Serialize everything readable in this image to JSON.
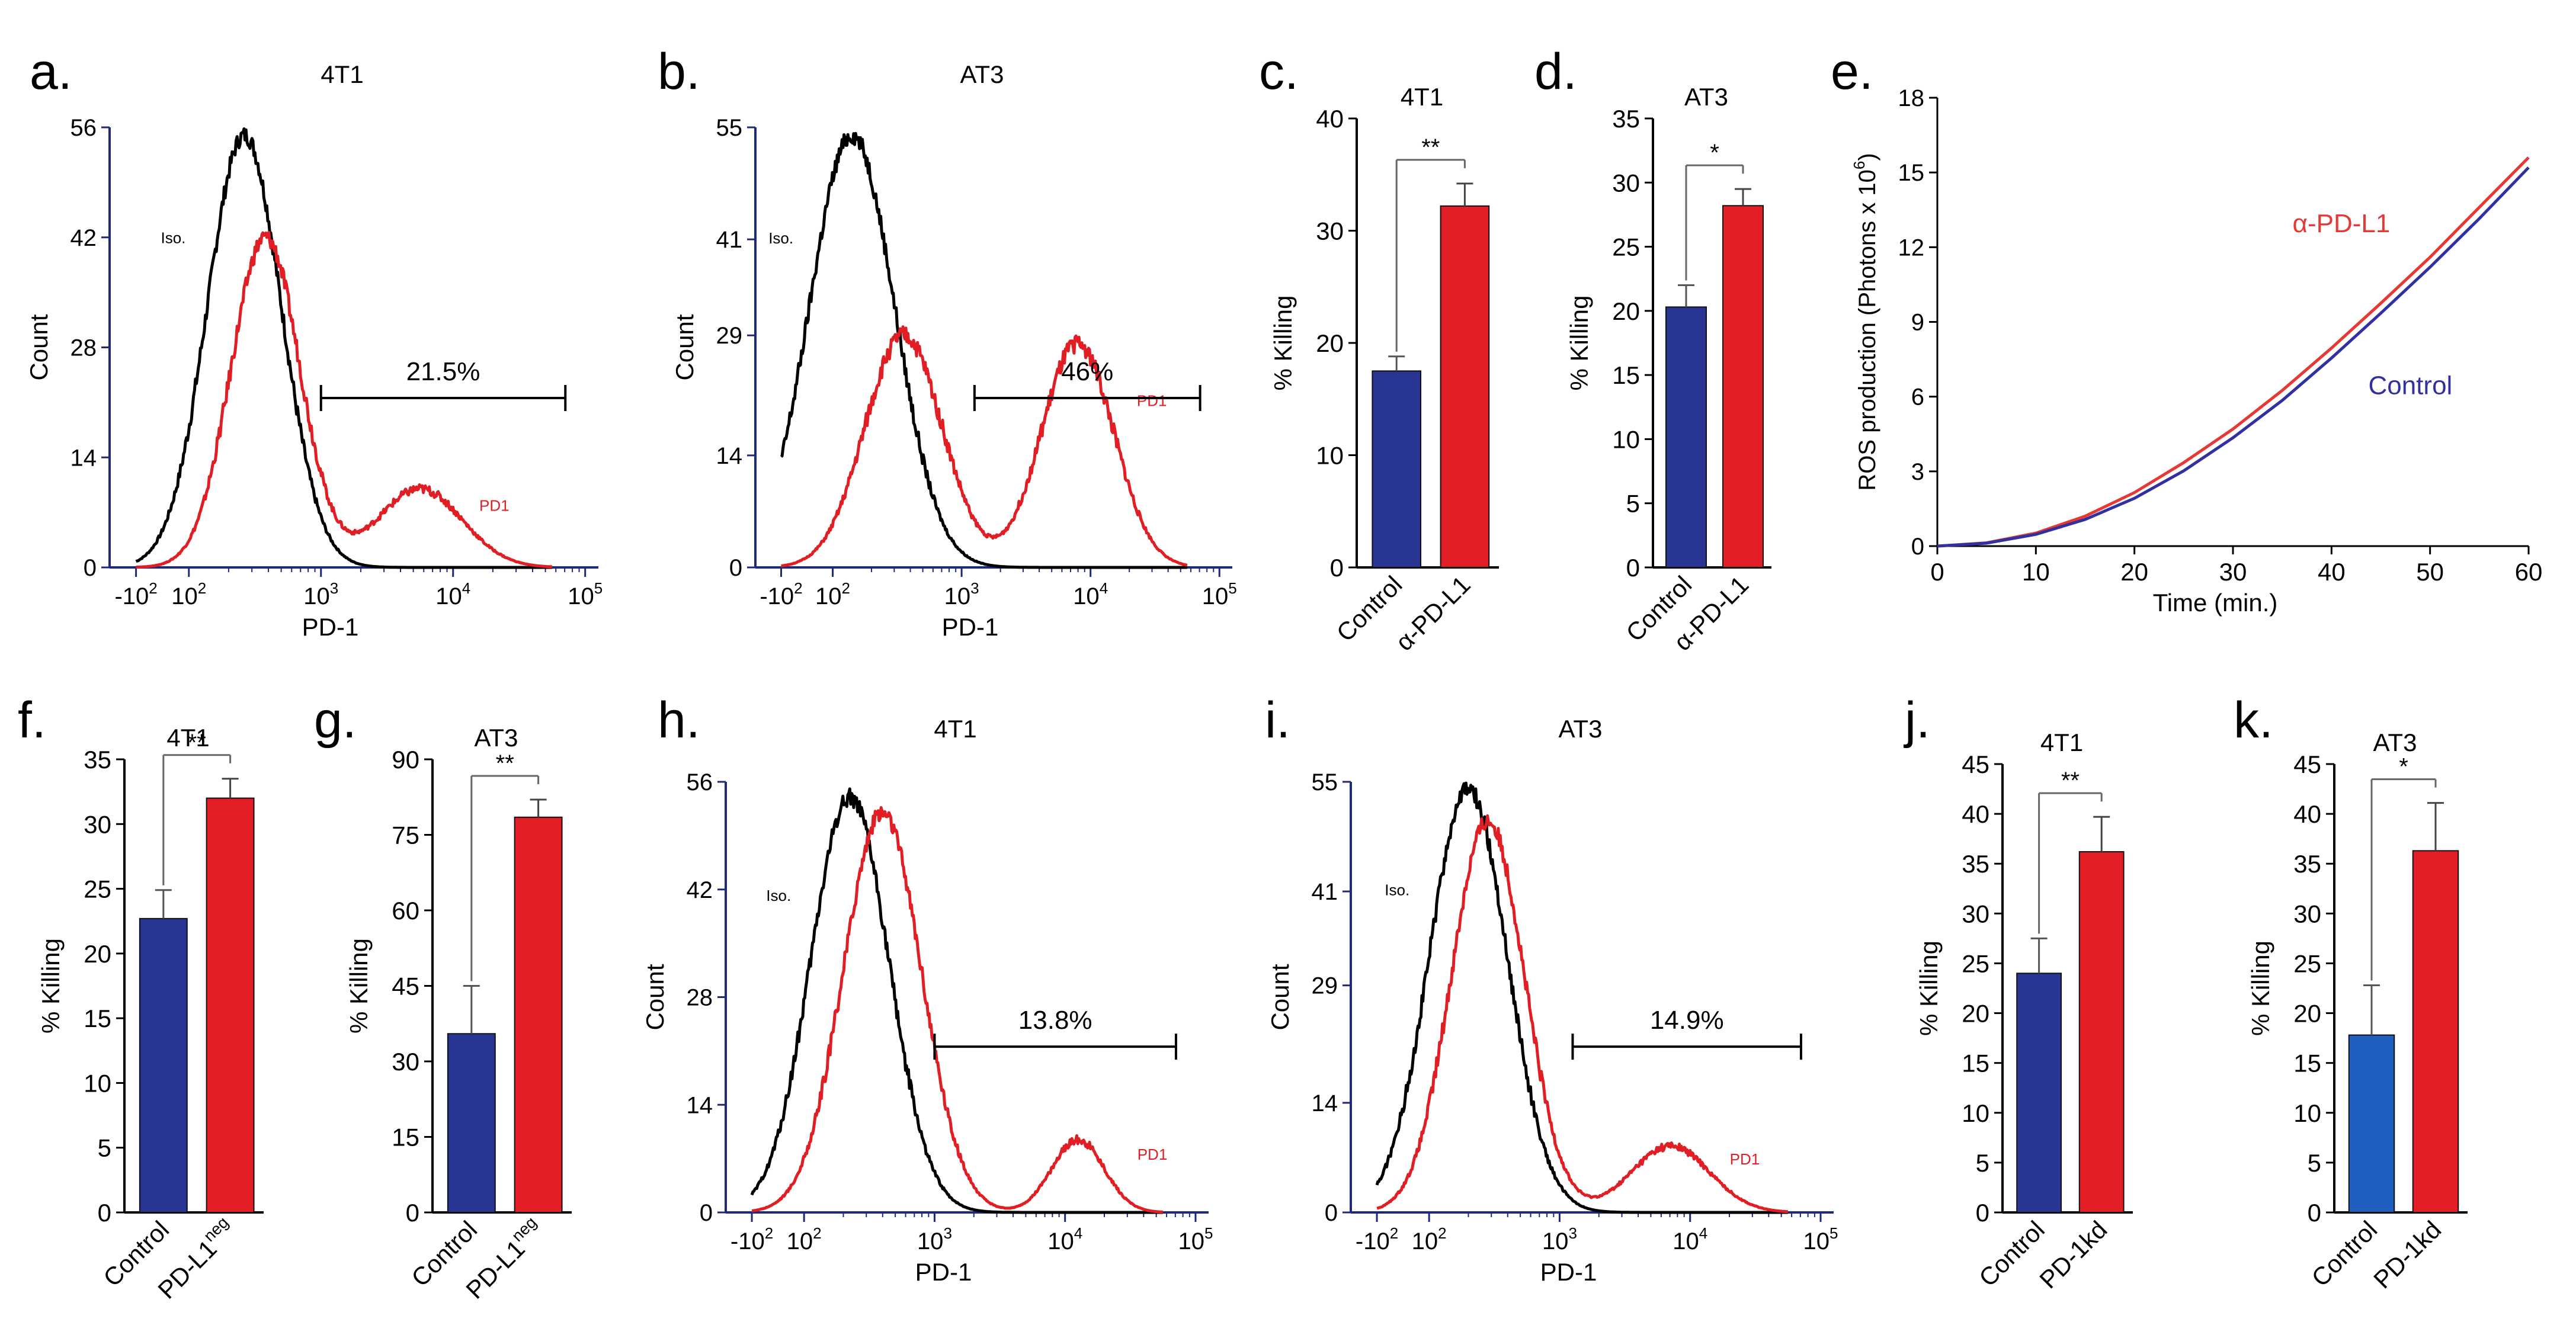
{
  "colors": {
    "axis": "#1d2a78",
    "black": "#000000",
    "red": "#e01e24",
    "blue": "#283593",
    "blue_alt": "#1f5fbf",
    "red_bar": "#e41e26",
    "line_red": "#e53935",
    "line_blue": "#3030a0"
  },
  "chart_data": [
    {
      "id": "a",
      "panel_label": "a.",
      "type": "line",
      "subtype": "histogram",
      "title": "4T1",
      "xlabel": "PD-1",
      "ylabel": "Count",
      "xscale": "logicle",
      "xticks": [
        "-10^2",
        "10^2",
        "10^3",
        "10^4",
        "10^5"
      ],
      "xtick_labels": [
        {
          "base": "-10",
          "exp": "2"
        },
        {
          "base": "10",
          "exp": "2"
        },
        {
          "base": "10",
          "exp": "3"
        },
        {
          "base": "10",
          "exp": "4"
        },
        {
          "base": "10",
          "exp": "5"
        }
      ],
      "yticks": [
        0,
        14,
        28,
        42,
        56
      ],
      "ylim": [
        0,
        56
      ],
      "annotations": {
        "iso": "Iso.",
        "pd1": "PD1",
        "gate_pct": "21.5%"
      },
      "gate_range_log10": [
        3.0,
        4.85
      ],
      "series": [
        {
          "name": "Iso.",
          "color": "#000000",
          "peaks": [
            {
              "x": 2.42,
              "h": 55,
              "w": 0.28
            }
          ]
        },
        {
          "name": "PD1",
          "color": "#e01e24",
          "peaks": [
            {
              "x": 2.58,
              "h": 42,
              "w": 0.26
            },
            {
              "x": 3.75,
              "h": 10,
              "w": 0.32
            }
          ]
        }
      ]
    },
    {
      "id": "b",
      "panel_label": "b.",
      "type": "line",
      "subtype": "histogram",
      "title": "AT3",
      "xlabel": "PD-1",
      "ylabel": "Count",
      "xscale": "logicle",
      "xticks": [
        "-10^2",
        "10^2",
        "10^3",
        "10^4",
        "10^5"
      ],
      "xtick_labels": [
        {
          "base": "-10",
          "exp": "2"
        },
        {
          "base": "10",
          "exp": "2"
        },
        {
          "base": "10",
          "exp": "3"
        },
        {
          "base": "10",
          "exp": "4"
        },
        {
          "base": "10",
          "exp": "5"
        }
      ],
      "yticks": [
        0,
        14,
        29,
        41,
        55
      ],
      "ylim": [
        0,
        55
      ],
      "annotations": {
        "iso": "Iso.",
        "pd1": "PD1",
        "gate_pct": "46%"
      },
      "gate_range_log10": [
        3.1,
        4.85
      ],
      "series": [
        {
          "name": "Iso.",
          "color": "#000000",
          "peaks": [
            {
              "x": 2.15,
              "h": 54,
              "w": 0.33
            }
          ]
        },
        {
          "name": "PD1",
          "color": "#e01e24",
          "peaks": [
            {
              "x": 2.55,
              "h": 29,
              "w": 0.3
            },
            {
              "x": 3.9,
              "h": 28,
              "w": 0.28
            }
          ]
        }
      ]
    },
    {
      "id": "c",
      "panel_label": "c.",
      "type": "bar",
      "title": "4T1",
      "ylabel": "% Killing",
      "categories": [
        "Control",
        "α-PD-L1"
      ],
      "values": [
        17.5,
        32.2
      ],
      "errors": [
        1.3,
        2.0
      ],
      "bar_colors": [
        "#283593",
        "#e41e26"
      ],
      "yticks": [
        0,
        10,
        20,
        30,
        40
      ],
      "ylim": [
        0,
        40
      ],
      "significance": "**"
    },
    {
      "id": "d",
      "panel_label": "d.",
      "type": "bar",
      "title": "AT3",
      "ylabel": "% Killing",
      "categories": [
        "Control",
        "α-PD-L1"
      ],
      "values": [
        20.3,
        28.2
      ],
      "errors": [
        1.7,
        1.3
      ],
      "bar_colors": [
        "#283593",
        "#e41e26"
      ],
      "yticks": [
        0,
        5,
        10,
        15,
        20,
        25,
        30,
        35
      ],
      "ylim": [
        0,
        35
      ],
      "significance": "*"
    },
    {
      "id": "e",
      "panel_label": "e.",
      "type": "line",
      "title": "",
      "xlabel": "Time (min.)",
      "ylabel": {
        "text": "ROS production (Photons x 10",
        "exp": "6",
        "suffix": ")"
      },
      "xticks": [
        0,
        10,
        20,
        30,
        40,
        50,
        60
      ],
      "xlim": [
        0,
        60
      ],
      "yticks": [
        0,
        3,
        6,
        9,
        12,
        15,
        18
      ],
      "ylim": [
        0,
        18
      ],
      "series": [
        {
          "name": "α-PD-L1",
          "color": "#e53935",
          "x": [
            0,
            5,
            10,
            15,
            20,
            25,
            30,
            35,
            40,
            45,
            50,
            55,
            60
          ],
          "y": [
            0,
            0.13,
            0.52,
            1.2,
            2.15,
            3.35,
            4.7,
            6.25,
            7.95,
            9.75,
            11.6,
            13.6,
            15.6
          ]
        },
        {
          "name": "Control",
          "color": "#3030a0",
          "x": [
            0,
            5,
            10,
            15,
            20,
            25,
            30,
            35,
            40,
            45,
            50,
            55,
            60
          ],
          "y": [
            0,
            0.12,
            0.47,
            1.07,
            1.92,
            3.02,
            4.35,
            5.85,
            7.55,
            9.35,
            11.2,
            13.15,
            15.2
          ]
        }
      ]
    },
    {
      "id": "f",
      "panel_label": "f.",
      "type": "bar",
      "title": "4T1",
      "ylabel": "% Killing",
      "categories": [
        "Control",
        "PD-L1neg"
      ],
      "category_labels": [
        {
          "base": "Control",
          "sup": ""
        },
        {
          "base": "PD-L1",
          "sup": "neg"
        }
      ],
      "values": [
        22.7,
        32.0
      ],
      "errors": [
        2.2,
        1.5
      ],
      "bar_colors": [
        "#283593",
        "#e41e26"
      ],
      "yticks": [
        0,
        5,
        10,
        15,
        20,
        25,
        30,
        35
      ],
      "ylim": [
        0,
        35
      ],
      "significance": "**"
    },
    {
      "id": "g",
      "panel_label": "g.",
      "type": "bar",
      "title": "AT3",
      "ylabel": "% Killing",
      "categories": [
        "Control",
        "PD-L1neg"
      ],
      "category_labels": [
        {
          "base": "Control",
          "sup": ""
        },
        {
          "base": "PD-L1",
          "sup": "neg"
        }
      ],
      "values": [
        35.5,
        78.5
      ],
      "errors": [
        9.5,
        3.5
      ],
      "bar_colors": [
        "#283593",
        "#e41e26"
      ],
      "yticks": [
        0,
        15,
        30,
        45,
        60,
        75,
        90
      ],
      "ylim": [
        0,
        90
      ],
      "significance": "**"
    },
    {
      "id": "h",
      "panel_label": "h.",
      "type": "line",
      "subtype": "histogram",
      "title": "4T1",
      "xlabel": "PD-1",
      "ylabel": "Count",
      "xscale": "logicle",
      "xticks": [
        "-10^2",
        "10^2",
        "10^3",
        "10^4",
        "10^5"
      ],
      "xtick_labels": [
        {
          "base": "-10",
          "exp": "2"
        },
        {
          "base": "10",
          "exp": "2"
        },
        {
          "base": "10",
          "exp": "3"
        },
        {
          "base": "10",
          "exp": "4"
        },
        {
          "base": "10",
          "exp": "5"
        }
      ],
      "yticks": [
        0,
        14,
        28,
        42,
        56
      ],
      "ylim": [
        0,
        56
      ],
      "annotations": {
        "iso": "Iso.",
        "pd1": "PD1",
        "gate_pct": "13.8%"
      },
      "gate_range_log10": [
        3.0,
        4.85
      ],
      "series": [
        {
          "name": "Iso.",
          "color": "#000000",
          "peaks": [
            {
              "x": 2.35,
              "h": 54,
              "w": 0.3
            }
          ]
        },
        {
          "name": "PD1",
          "color": "#e01e24",
          "peaks": [
            {
              "x": 2.6,
              "h": 52,
              "w": 0.3
            },
            {
              "x": 4.1,
              "h": 9.5,
              "w": 0.2
            }
          ]
        }
      ]
    },
    {
      "id": "i",
      "panel_label": "i.",
      "type": "line",
      "subtype": "histogram",
      "title": "AT3",
      "xlabel": "PD-1",
      "ylabel": "Count",
      "xscale": "logicle",
      "xticks": [
        "-10^2",
        "10^2",
        "10^3",
        "10^4",
        "10^5"
      ],
      "xtick_labels": [
        {
          "base": "-10",
          "exp": "2"
        },
        {
          "base": "10",
          "exp": "2"
        },
        {
          "base": "10",
          "exp": "3"
        },
        {
          "base": "10",
          "exp": "4"
        },
        {
          "base": "10",
          "exp": "5"
        }
      ],
      "yticks": [
        0,
        14,
        29,
        41,
        55
      ],
      "ylim": [
        0,
        55
      ],
      "annotations": {
        "iso": "Iso.",
        "pd1": "PD1",
        "gate_pct": "14.9%"
      },
      "gate_range_log10": [
        3.1,
        4.85
      ],
      "series": [
        {
          "name": "Iso.",
          "color": "#000000",
          "peaks": [
            {
              "x": 2.3,
              "h": 54,
              "w": 0.3
            }
          ]
        },
        {
          "name": "PD1",
          "color": "#e01e24",
          "peaks": [
            {
              "x": 2.45,
              "h": 50,
              "w": 0.28
            },
            {
              "x": 3.85,
              "h": 8.5,
              "w": 0.3
            }
          ]
        }
      ]
    },
    {
      "id": "j",
      "panel_label": "j.",
      "type": "bar",
      "title": "4T1",
      "ylabel": "% Killing",
      "categories": [
        "Control",
        "PD-1kd"
      ],
      "values": [
        24.0,
        36.2
      ],
      "errors": [
        3.5,
        3.5
      ],
      "bar_colors": [
        "#283593",
        "#e41e26"
      ],
      "yticks": [
        0,
        5,
        10,
        15,
        20,
        25,
        30,
        35,
        40,
        45
      ],
      "ylim": [
        0,
        45
      ],
      "significance": "**"
    },
    {
      "id": "k",
      "panel_label": "k.",
      "type": "bar",
      "title": "AT3",
      "ylabel": "% Killing",
      "categories": [
        "Control",
        "PD-1kd"
      ],
      "values": [
        17.8,
        36.3
      ],
      "errors": [
        5.0,
        4.8
      ],
      "bar_colors": [
        "#1f5fbf",
        "#e41e26"
      ],
      "yticks": [
        0,
        5,
        10,
        15,
        20,
        25,
        30,
        35,
        40,
        45
      ],
      "ylim": [
        0,
        45
      ],
      "significance": "*"
    }
  ]
}
